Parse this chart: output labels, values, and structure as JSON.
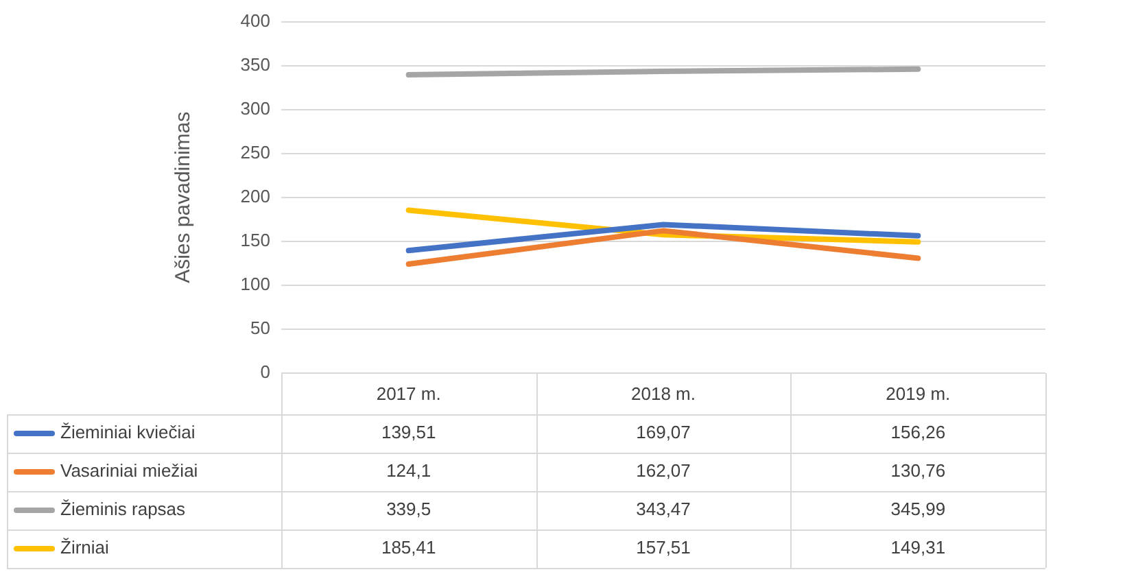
{
  "chart_data": {
    "type": "line",
    "ylabel": "Ašies pavadinimas",
    "categories": [
      "2017 m.",
      "2018 m.",
      "2019 m."
    ],
    "series": [
      {
        "name": "Žieminiai kviečiai",
        "color": "#4472c4",
        "values": [
          139.51,
          169.07,
          156.26
        ],
        "value_labels": [
          "139,51",
          "169,07",
          "156,26"
        ]
      },
      {
        "name": "Vasariniai miežiai",
        "color": "#ed7d31",
        "values": [
          124.1,
          162.07,
          130.76
        ],
        "value_labels": [
          "124,1",
          "162,07",
          "130,76"
        ]
      },
      {
        "name": "Žieminis rapsas",
        "color": "#a5a5a5",
        "values": [
          339.5,
          343.47,
          345.99
        ],
        "value_labels": [
          "339,5",
          "343,47",
          "345,99"
        ]
      },
      {
        "name": "Žirniai",
        "color": "#ffc000",
        "values": [
          185.41,
          157.51,
          149.31
        ],
        "value_labels": [
          "185,41",
          "157,51",
          "149,31"
        ]
      }
    ],
    "ylim": [
      0,
      400
    ],
    "yticks": [
      0,
      50,
      100,
      150,
      200,
      250,
      300,
      350,
      400
    ],
    "grid": "y",
    "legend": "bottom",
    "marker": "none",
    "line_style": "solid"
  }
}
